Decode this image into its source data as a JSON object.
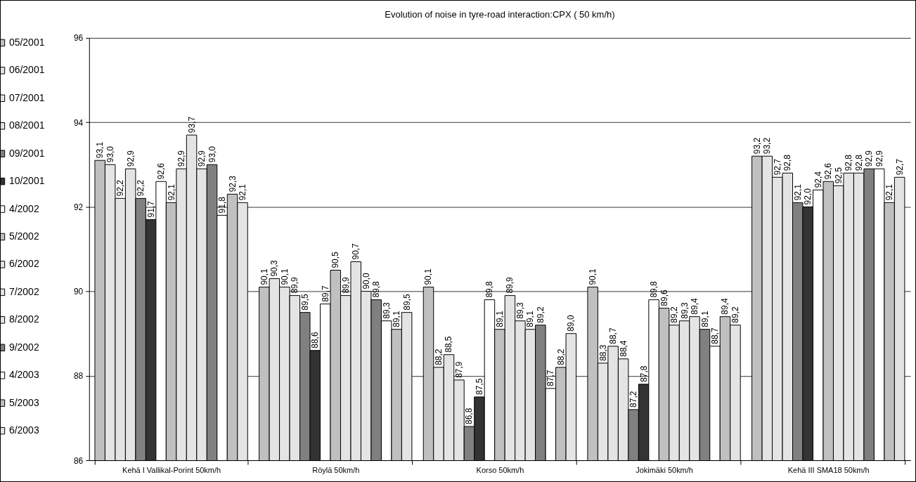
{
  "chart_data": {
    "type": "bar",
    "title": "Evolution of noise in tyre-road interaction:CPX ( 50 km/h)",
    "categories": [
      "Kehä I Vallikal-Porint 50km/h",
      "Röylä 50km/h",
      "Korso 50km/h",
      "Jokimäki 50km/h",
      "Kehä III SMA18 50km/h"
    ],
    "series": [
      {
        "name": "05/2001",
        "color": "#c0c0c0",
        "values": [
          93.1,
          90.1,
          90.1,
          90.1,
          93.2
        ],
        "value_labels": [
          "93,1",
          "90,1",
          "90,1",
          "90,1",
          "93,2"
        ]
      },
      {
        "name": "06/2001",
        "color": "#e4e4e4",
        "values": [
          93.0,
          90.3,
          88.2,
          88.3,
          93.2
        ],
        "value_labels": [
          "93,0",
          "90,3",
          "88,2",
          "88,3",
          "93,2"
        ]
      },
      {
        "name": "07/2001",
        "color": "#e4e4e4",
        "values": [
          92.2,
          90.1,
          88.5,
          88.7,
          92.7
        ],
        "value_labels": [
          "92,2",
          "90,1",
          "88,5",
          "88,7",
          "92,7"
        ]
      },
      {
        "name": "08/2001",
        "color": "#e4e4e4",
        "values": [
          92.9,
          89.9,
          87.9,
          88.4,
          92.8
        ],
        "value_labels": [
          "92,9",
          "89,9",
          "87,9",
          "88,4",
          "92,8"
        ]
      },
      {
        "name": "09/2001",
        "color": "#808080",
        "values": [
          92.2,
          89.5,
          86.8,
          87.2,
          92.1
        ],
        "value_labels": [
          "92,2",
          "89,5",
          "86,8",
          "87,2",
          "92,1"
        ]
      },
      {
        "name": "10/2001",
        "color": "#333333",
        "values": [
          91.7,
          88.6,
          87.5,
          87.8,
          92.0
        ],
        "value_labels": [
          "91,7",
          "88,6",
          "87,5",
          "87,8",
          "92,0"
        ]
      },
      {
        "name": "4/2002",
        "color": "#ffffff",
        "values": [
          92.6,
          89.7,
          89.8,
          89.8,
          92.4
        ],
        "value_labels": [
          "92,6",
          "89,7",
          "89,8",
          "89,8",
          "92,4"
        ]
      },
      {
        "name": "5/2002",
        "color": "#c0c0c0",
        "values": [
          92.1,
          90.5,
          89.1,
          89.6,
          92.6
        ],
        "value_labels": [
          "92,1",
          "90,5",
          "89,1",
          "89,6",
          "92,6"
        ]
      },
      {
        "name": "6/2002",
        "color": "#e4e4e4",
        "values": [
          92.9,
          89.9,
          89.9,
          89.2,
          92.5
        ],
        "value_labels": [
          "92,9",
          "89,9",
          "89,9",
          "89,2",
          "92,5"
        ]
      },
      {
        "name": "7/2002",
        "color": "#e4e4e4",
        "values": [
          93.7,
          90.7,
          89.3,
          89.3,
          92.8
        ],
        "value_labels": [
          "93,7",
          "90,7",
          "89,3",
          "89,3",
          "92,8"
        ]
      },
      {
        "name": "8/2002",
        "color": "#e4e4e4",
        "values": [
          92.9,
          90.0,
          89.1,
          89.4,
          92.8
        ],
        "value_labels": [
          "92,9",
          "90,0",
          "89,1",
          "89,4",
          "92,8"
        ]
      },
      {
        "name": "9/2002",
        "color": "#808080",
        "values": [
          93.0,
          89.8,
          89.2,
          89.1,
          92.9
        ],
        "value_labels": [
          "93,0",
          "89,8",
          "89,2",
          "89,1",
          "92,9"
        ]
      },
      {
        "name": "4/2003",
        "color": "#ffffff",
        "values": [
          91.8,
          89.3,
          87.7,
          88.7,
          92.9
        ],
        "value_labels": [
          "91,8",
          "89,3",
          "87,7",
          "88,7",
          "92,9"
        ]
      },
      {
        "name": "5/2003",
        "color": "#c0c0c0",
        "values": [
          92.3,
          89.1,
          88.2,
          89.4,
          92.1
        ],
        "value_labels": [
          "92,3",
          "89,1",
          "88,2",
          "89,4",
          "92,1"
        ]
      },
      {
        "name": "6/2003",
        "color": "#e4e4e4",
        "values": [
          92.1,
          89.5,
          89.0,
          89.2,
          92.7
        ],
        "value_labels": [
          "92,1",
          "89,5",
          "89,0",
          "89,2",
          "92,7"
        ]
      }
    ],
    "ylim": [
      86,
      96
    ],
    "yticks": [
      86,
      88,
      90,
      92,
      94,
      96
    ],
    "grid": "y",
    "legend": "left"
  }
}
